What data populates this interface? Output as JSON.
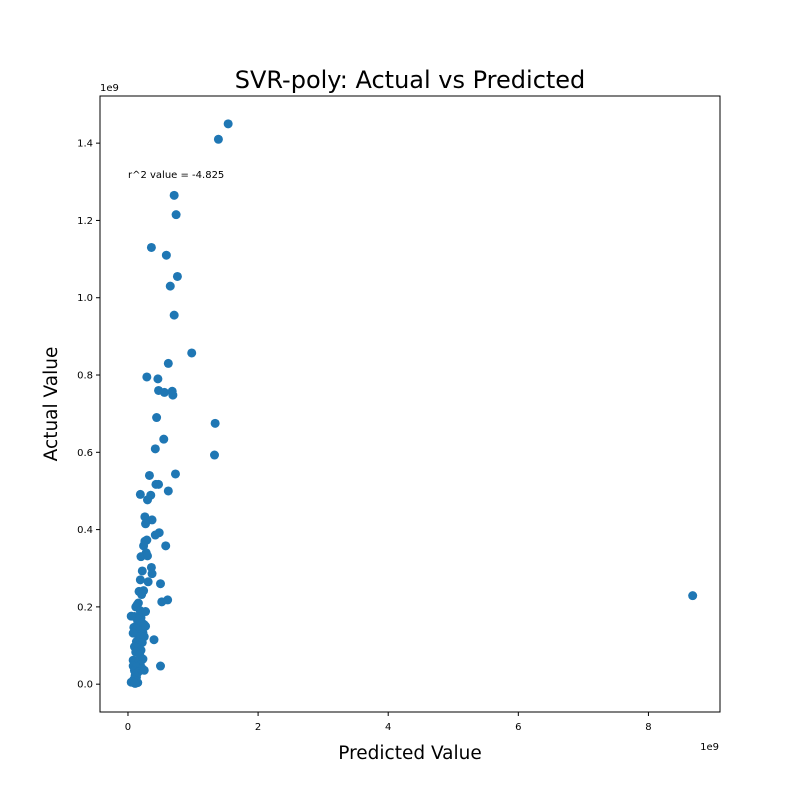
{
  "chart_data": {
    "type": "scatter",
    "title": "SVR-poly: Actual vs Predicted",
    "xlabel": "Predicted Value",
    "ylabel": "Actual Value",
    "x_offset_text": "1e9",
    "y_offset_text": "1e9",
    "xlim": [
      -0.43,
      9.1
    ],
    "ylim": [
      -0.072,
      1.522
    ],
    "x_ticks": [
      0,
      2,
      4,
      6,
      8
    ],
    "x_tick_labels": [
      "0",
      "2",
      "4",
      "6",
      "8"
    ],
    "y_ticks": [
      0.0,
      0.2,
      0.4,
      0.6,
      0.8,
      1.0,
      1.2,
      1.4
    ],
    "y_tick_labels": [
      "0.0",
      "0.2",
      "0.4",
      "0.6",
      "0.8",
      "1.0",
      "1.2",
      "1.4"
    ],
    "grid": false,
    "marker_color": "#1f77b4",
    "annotation": {
      "text": "r^2 value = -4.825",
      "x": 0.0,
      "y": 1.31
    },
    "series": [
      {
        "x": [
          1.54,
          1.39,
          0.71,
          0.74,
          0.36,
          0.59,
          0.76,
          0.65,
          0.71,
          0.98,
          0.62,
          0.29,
          0.46,
          0.47,
          0.56,
          0.68,
          0.69,
          0.44,
          1.34,
          0.55,
          0.42,
          1.33,
          0.33,
          0.73,
          0.43,
          0.47,
          0.62,
          0.19,
          0.35,
          0.3,
          0.26,
          0.37,
          0.27,
          0.48,
          0.42,
          0.26,
          0.29,
          0.58,
          0.24,
          0.28,
          0.2,
          0.3,
          0.36,
          0.22,
          0.37,
          0.19,
          0.31,
          0.5,
          0.17,
          0.24,
          0.21,
          0.61,
          0.52,
          0.16,
          0.14,
          0.12,
          0.19,
          0.27,
          0.1,
          0.2,
          0.14,
          0.15,
          0.22,
          0.25,
          0.05,
          0.09,
          0.13,
          0.18,
          0.23,
          0.27,
          0.15,
          0.08,
          0.2,
          0.25,
          0.4,
          0.13,
          0.22,
          0.17,
          0.1,
          0.16,
          0.2,
          0.12,
          0.18,
          0.23,
          0.08,
          0.11,
          0.16,
          0.19,
          0.08,
          0.13,
          0.22,
          0.5,
          0.1,
          0.16,
          0.25,
          0.14,
          0.11,
          0.13,
          0.09,
          0.12,
          0.08,
          0.15,
          0.05,
          0.11,
          8.68
        ],
        "y": [
          1.45,
          1.41,
          1.265,
          1.215,
          1.13,
          1.11,
          1.055,
          1.03,
          0.955,
          0.857,
          0.83,
          0.795,
          0.79,
          0.76,
          0.755,
          0.758,
          0.748,
          0.69,
          0.675,
          0.634,
          0.609,
          0.593,
          0.54,
          0.544,
          0.517,
          0.517,
          0.5,
          0.491,
          0.489,
          0.477,
          0.433,
          0.425,
          0.415,
          0.392,
          0.386,
          0.37,
          0.373,
          0.358,
          0.358,
          0.34,
          0.33,
          0.332,
          0.302,
          0.293,
          0.286,
          0.27,
          0.265,
          0.26,
          0.24,
          0.242,
          0.232,
          0.218,
          0.213,
          0.21,
          0.205,
          0.2,
          0.19,
          0.188,
          0.175,
          0.172,
          0.17,
          0.162,
          0.158,
          0.154,
          0.176,
          0.147,
          0.143,
          0.138,
          0.133,
          0.15,
          0.128,
          0.132,
          0.124,
          0.123,
          0.115,
          0.11,
          0.108,
          0.1,
          0.097,
          0.093,
          0.088,
          0.083,
          0.077,
          0.065,
          0.062,
          0.058,
          0.055,
          0.05,
          0.047,
          0.045,
          0.04,
          0.047,
          0.035,
          0.032,
          0.036,
          0.028,
          0.022,
          0.018,
          0.012,
          0.008,
          0.005,
          0.004,
          0.005,
          0.002,
          0.229
        ]
      }
    ]
  }
}
